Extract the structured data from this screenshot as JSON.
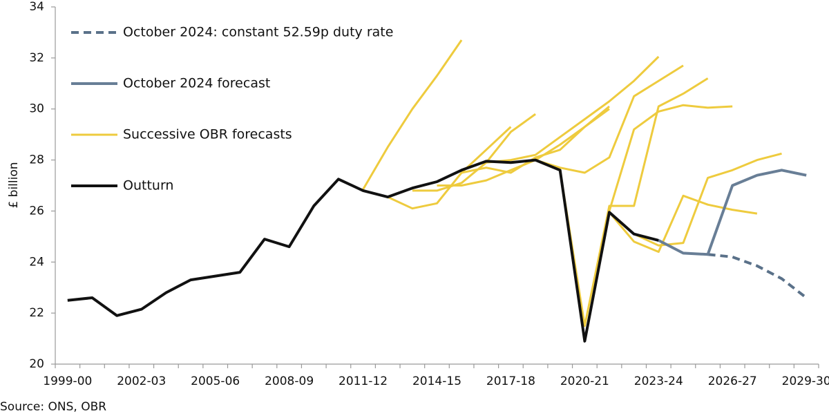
{
  "chart_data": {
    "type": "line",
    "y_label": "£ billion",
    "source": "Source: ONS, OBR",
    "categories": [
      "1999-00",
      null,
      null,
      "2002-03",
      null,
      null,
      "2005-06",
      null,
      null,
      "2008-09",
      null,
      null,
      "2011-12",
      null,
      null,
      "2014-15",
      null,
      null,
      "2017-18",
      null,
      null,
      "2020-21",
      null,
      null,
      "2023-24",
      null,
      null,
      "2026-27",
      null,
      null,
      "2029-30"
    ],
    "ylim": [
      20,
      34
    ],
    "yticks": [
      20,
      22,
      24,
      26,
      28,
      30,
      32,
      34
    ],
    "forecast_vintages": {
      "name": "Successive OBR forecasts",
      "color": "#eecb3e",
      "lines": [
        [
          null,
          null,
          null,
          null,
          null,
          null,
          null,
          null,
          null,
          null,
          null,
          null,
          26.85,
          28.5,
          30.0,
          31.3,
          32.7,
          null,
          null,
          null,
          null,
          null,
          null,
          null,
          null,
          null,
          null,
          null,
          null,
          null,
          null
        ],
        [
          null,
          null,
          null,
          null,
          null,
          null,
          null,
          null,
          null,
          null,
          null,
          null,
          null,
          26.55,
          26.1,
          26.3,
          27.5,
          28.4,
          29.3,
          null,
          null,
          null,
          null,
          null,
          null,
          null,
          null,
          null,
          null,
          null,
          null
        ],
        [
          null,
          null,
          null,
          null,
          null,
          null,
          null,
          null,
          null,
          null,
          null,
          null,
          null,
          null,
          26.8,
          26.8,
          27.1,
          27.9,
          29.1,
          29.8,
          null,
          null,
          null,
          null,
          null,
          null,
          null,
          null,
          null,
          null,
          null
        ],
        [
          null,
          null,
          null,
          null,
          null,
          null,
          null,
          null,
          null,
          null,
          null,
          null,
          null,
          null,
          null,
          27.0,
          27.0,
          27.2,
          27.6,
          28.0,
          28.6,
          29.3,
          30.1,
          null,
          null,
          null,
          null,
          null,
          null,
          null,
          null
        ],
        [
          null,
          null,
          null,
          null,
          null,
          null,
          null,
          null,
          null,
          null,
          null,
          null,
          null,
          null,
          null,
          null,
          27.5,
          27.7,
          27.5,
          28.1,
          28.4,
          29.3,
          30.0,
          null,
          null,
          null,
          null,
          null,
          null,
          null,
          null
        ],
        [
          null,
          null,
          null,
          null,
          null,
          null,
          null,
          null,
          null,
          null,
          null,
          null,
          null,
          null,
          null,
          null,
          null,
          27.9,
          28.0,
          28.2,
          28.9,
          29.6,
          30.3,
          31.1,
          32.05,
          null,
          null,
          null,
          null,
          null,
          null
        ],
        [
          null,
          null,
          null,
          null,
          null,
          null,
          null,
          null,
          null,
          null,
          null,
          null,
          null,
          null,
          null,
          null,
          null,
          null,
          null,
          28.0,
          27.7,
          27.5,
          28.1,
          30.5,
          31.1,
          31.7,
          null,
          null,
          null,
          null,
          null
        ],
        [
          null,
          null,
          null,
          null,
          null,
          null,
          null,
          null,
          null,
          null,
          null,
          null,
          null,
          null,
          null,
          null,
          null,
          null,
          null,
          null,
          27.6,
          21.5,
          26.2,
          26.2,
          30.1,
          30.6,
          31.2,
          null,
          null,
          null,
          null
        ],
        [
          null,
          null,
          null,
          null,
          null,
          null,
          null,
          null,
          null,
          null,
          null,
          null,
          null,
          null,
          null,
          null,
          null,
          null,
          null,
          null,
          null,
          20.9,
          26.0,
          29.2,
          29.9,
          30.15,
          30.05,
          30.1,
          null,
          null,
          null
        ],
        [
          null,
          null,
          null,
          null,
          null,
          null,
          null,
          null,
          null,
          null,
          null,
          null,
          null,
          null,
          null,
          null,
          null,
          null,
          null,
          null,
          null,
          null,
          25.95,
          24.8,
          24.4,
          26.6,
          26.25,
          26.05,
          25.9,
          null,
          null
        ],
        [
          null,
          null,
          null,
          null,
          null,
          null,
          null,
          null,
          null,
          null,
          null,
          null,
          null,
          null,
          null,
          null,
          null,
          null,
          null,
          null,
          null,
          null,
          null,
          25.1,
          24.65,
          24.75,
          27.3,
          27.6,
          28.0,
          28.25,
          null
        ]
      ]
    },
    "series": [
      {
        "name": "October 2024: constant 52.59p duty rate",
        "color": "#5a7189",
        "dashed": true,
        "values": [
          null,
          null,
          null,
          null,
          null,
          null,
          null,
          null,
          null,
          null,
          null,
          null,
          null,
          null,
          null,
          null,
          null,
          null,
          null,
          null,
          null,
          null,
          null,
          null,
          null,
          null,
          24.3,
          24.2,
          23.85,
          23.35,
          22.6
        ]
      },
      {
        "name": "October 2024 forecast",
        "color": "#687e96",
        "values": [
          null,
          null,
          null,
          null,
          null,
          null,
          null,
          null,
          null,
          null,
          null,
          null,
          null,
          null,
          null,
          null,
          null,
          null,
          null,
          null,
          null,
          null,
          null,
          null,
          24.85,
          24.35,
          24.3,
          27.0,
          27.4,
          27.6,
          27.4
        ]
      },
      {
        "name": "Outturn",
        "color": "#111111",
        "values": [
          22.5,
          22.6,
          21.9,
          22.15,
          22.8,
          23.3,
          23.45,
          23.6,
          24.9,
          24.6,
          26.2,
          27.25,
          26.8,
          26.55,
          26.9,
          27.15,
          27.6,
          27.95,
          27.9,
          28.0,
          27.6,
          20.9,
          25.95,
          25.1,
          24.85,
          null,
          null,
          null,
          null,
          null,
          null
        ]
      }
    ]
  }
}
